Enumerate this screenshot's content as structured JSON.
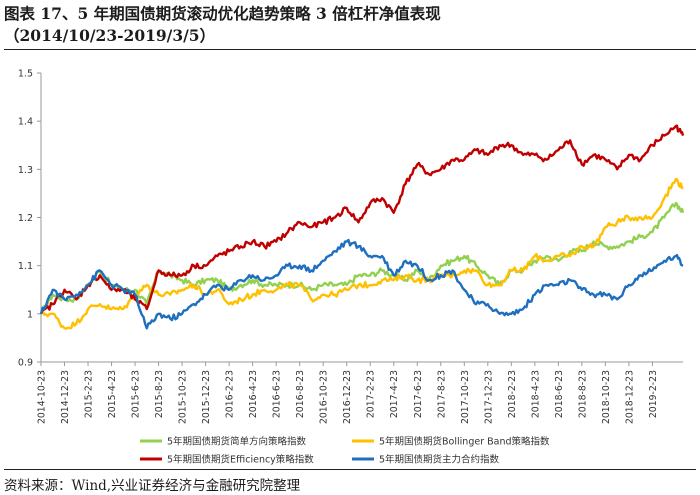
{
  "title": {
    "line1": "图表 17、5 年期国债期货滚动优化趋势策略 3 倍杠杆净值表现",
    "line2": "（2014/10/23-2019/3/5）"
  },
  "source": "资料来源：Wind,兴业证券经济与金融研究院整理",
  "chart_data": {
    "type": "line",
    "title": "图表 17、5 年期国债期货滚动优化趋势策略 3 倍杠杆净值表现",
    "xlabel": "",
    "ylabel": "",
    "ylim": [
      0.9,
      1.5
    ],
    "yticks": [
      "0.9",
      "1",
      "1.1",
      "1.2",
      "1.3",
      "1.4",
      "1.5"
    ],
    "grid": false,
    "legend_position": "bottom",
    "x_tick_labels": [
      "2014-10-23",
      "2014-12-23",
      "2015-2-23",
      "2015-4-23",
      "2015-6-23",
      "2015-8-23",
      "2015-10-23",
      "2015-12-23",
      "2016-2-23",
      "2016-4-23",
      "2016-6-23",
      "2016-8-23",
      "2016-10-23",
      "2016-12-23",
      "2017-2-23",
      "2017-4-23",
      "2017-6-23",
      "2017-8-23",
      "2017-10-23",
      "2017-12-23",
      "2018-2-23",
      "2018-4-23",
      "2018-6-23",
      "2018-8-23",
      "2018-10-23",
      "2018-12-23",
      "2019-2-23"
    ],
    "series": [
      {
        "name": "5年期国债期货简单方向策略指数",
        "color": "#92d050",
        "x": [
          0,
          0.5,
          1,
          1.5,
          2,
          2.5,
          3,
          3.5,
          4,
          4.5,
          5,
          5.5,
          6,
          6.5,
          7,
          7.5,
          8,
          8.5,
          9,
          9.5,
          10,
          10.5,
          11,
          11.5,
          12,
          12.5,
          13,
          13.5,
          14,
          14.5,
          15,
          15.5,
          16,
          16.5,
          17,
          17.5,
          18,
          18.5,
          19,
          19.5,
          20,
          20.5,
          21,
          21.5,
          22,
          22.5,
          23,
          23.5,
          24,
          24.5,
          25,
          25.5,
          26,
          26.5,
          27,
          27.3
        ],
        "values": [
          1.0,
          1.04,
          1.03,
          1.03,
          1.06,
          1.09,
          1.06,
          1.05,
          1.05,
          1.02,
          1.09,
          1.08,
          1.07,
          1.06,
          1.07,
          1.07,
          1.05,
          1.06,
          1.07,
          1.06,
          1.06,
          1.06,
          1.06,
          1.05,
          1.06,
          1.06,
          1.06,
          1.08,
          1.08,
          1.09,
          1.08,
          1.07,
          1.09,
          1.07,
          1.1,
          1.11,
          1.12,
          1.1,
          1.08,
          1.06,
          1.09,
          1.09,
          1.11,
          1.12,
          1.11,
          1.13,
          1.13,
          1.15,
          1.14,
          1.14,
          1.15,
          1.16,
          1.17,
          1.2,
          1.23,
          1.21
        ]
      },
      {
        "name": "5年期国债期货Bollinger Band策略指数",
        "color": "#ffc000",
        "x": [
          0,
          0.5,
          1,
          1.5,
          2,
          2.5,
          3,
          3.5,
          4,
          4.5,
          5,
          5.5,
          6,
          6.5,
          7,
          7.5,
          8,
          8.5,
          9,
          9.5,
          10,
          10.5,
          11,
          11.5,
          12,
          12.5,
          13,
          13.5,
          14,
          14.5,
          15,
          15.5,
          16,
          16.5,
          17,
          17.5,
          18,
          18.5,
          19,
          19.5,
          20,
          20.5,
          21,
          21.5,
          22,
          22.5,
          23,
          23.5,
          24,
          24.5,
          25,
          25.5,
          26,
          26.5,
          27,
          27.3
        ],
        "values": [
          1.0,
          1.0,
          0.97,
          0.98,
          1.01,
          1.02,
          1.01,
          1.01,
          1.04,
          1.06,
          1.04,
          1.04,
          1.05,
          1.06,
          1.04,
          1.05,
          1.02,
          1.03,
          1.04,
          1.05,
          1.05,
          1.06,
          1.06,
          1.03,
          1.04,
          1.04,
          1.05,
          1.06,
          1.06,
          1.07,
          1.07,
          1.08,
          1.07,
          1.07,
          1.08,
          1.08,
          1.09,
          1.09,
          1.06,
          1.06,
          1.09,
          1.09,
          1.12,
          1.11,
          1.12,
          1.12,
          1.14,
          1.14,
          1.18,
          1.19,
          1.2,
          1.2,
          1.2,
          1.24,
          1.28,
          1.26
        ]
      },
      {
        "name": "5年期国债期货Efficiency策略指数",
        "color": "#c00000",
        "x": [
          0,
          0.5,
          1,
          1.5,
          2,
          2.5,
          3,
          3.5,
          4,
          4.5,
          5,
          5.5,
          6,
          6.5,
          7,
          7.5,
          8,
          8.5,
          9,
          9.5,
          10,
          10.5,
          11,
          11.5,
          12,
          12.5,
          13,
          13.5,
          14,
          14.5,
          15,
          15.5,
          16,
          16.5,
          17,
          17.5,
          18,
          18.5,
          19,
          19.5,
          20,
          20.5,
          21,
          21.5,
          22,
          22.5,
          23,
          23.5,
          24,
          24.5,
          25,
          25.5,
          26,
          26.5,
          27,
          27.3
        ],
        "values": [
          1.0,
          1.02,
          1.05,
          1.03,
          1.06,
          1.08,
          1.05,
          1.05,
          1.03,
          1.01,
          1.09,
          1.08,
          1.08,
          1.1,
          1.1,
          1.12,
          1.13,
          1.14,
          1.15,
          1.14,
          1.15,
          1.17,
          1.19,
          1.18,
          1.19,
          1.2,
          1.22,
          1.19,
          1.23,
          1.24,
          1.21,
          1.27,
          1.31,
          1.29,
          1.3,
          1.32,
          1.32,
          1.34,
          1.33,
          1.35,
          1.35,
          1.33,
          1.33,
          1.32,
          1.34,
          1.36,
          1.31,
          1.33,
          1.32,
          1.3,
          1.33,
          1.32,
          1.35,
          1.37,
          1.39,
          1.37
        ]
      },
      {
        "name": "5年期国债期货主力合约指数",
        "color": "#1f6fbf",
        "x": [
          0,
          0.5,
          1,
          1.5,
          2,
          2.5,
          3,
          3.5,
          4,
          4.5,
          5,
          5.5,
          6,
          6.5,
          7,
          7.5,
          8,
          8.5,
          9,
          9.5,
          10,
          10.5,
          11,
          11.5,
          12,
          12.5,
          13,
          13.5,
          14,
          14.5,
          15,
          15.5,
          16,
          16.5,
          17,
          17.5,
          18,
          18.5,
          19,
          19.5,
          20,
          20.5,
          21,
          21.5,
          22,
          22.5,
          23,
          23.5,
          24,
          24.5,
          25,
          25.5,
          26,
          26.5,
          27,
          27.3
        ],
        "values": [
          1.0,
          1.05,
          1.03,
          1.04,
          1.06,
          1.09,
          1.06,
          1.05,
          1.04,
          0.97,
          1.0,
          0.99,
          1.0,
          1.02,
          1.04,
          1.06,
          1.05,
          1.07,
          1.08,
          1.07,
          1.08,
          1.1,
          1.1,
          1.09,
          1.11,
          1.13,
          1.15,
          1.14,
          1.12,
          1.12,
          1.08,
          1.11,
          1.1,
          1.07,
          1.08,
          1.09,
          1.05,
          1.02,
          1.02,
          1.0,
          1.0,
          1.01,
          1.04,
          1.06,
          1.06,
          1.07,
          1.05,
          1.04,
          1.04,
          1.03,
          1.06,
          1.08,
          1.09,
          1.11,
          1.12,
          1.1
        ]
      }
    ]
  }
}
